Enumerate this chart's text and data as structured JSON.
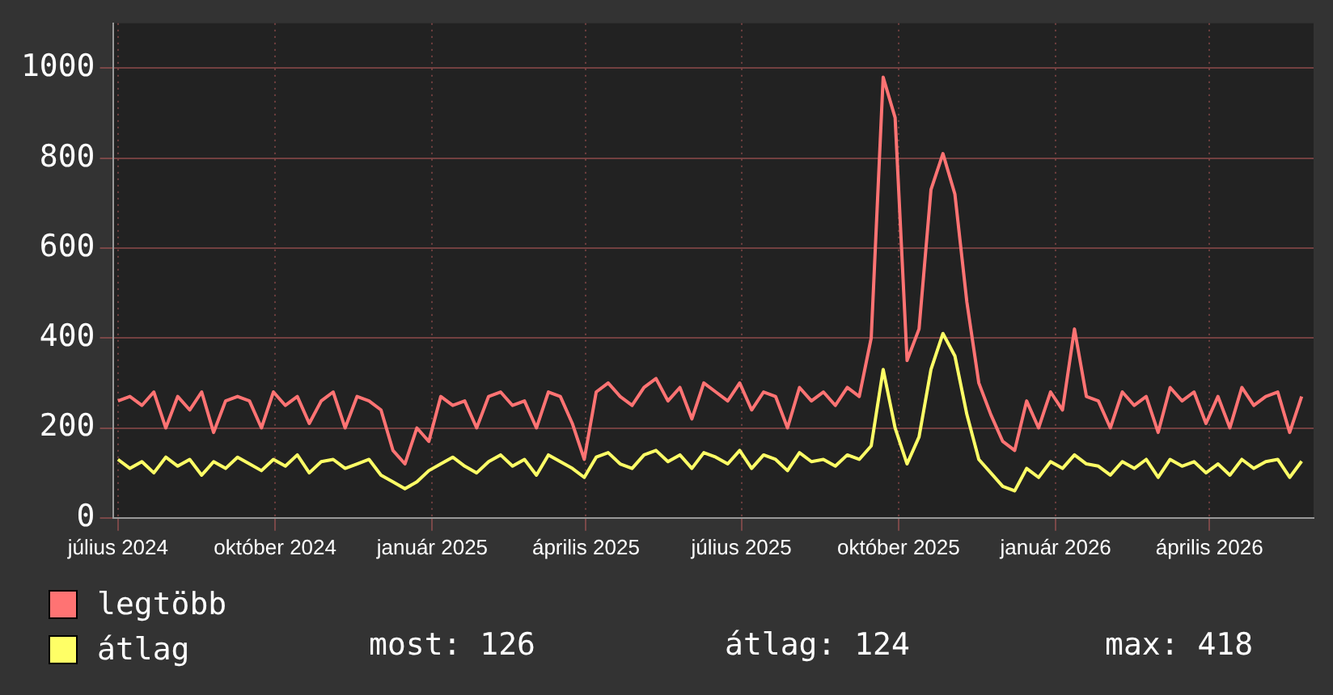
{
  "chart_data": {
    "type": "line",
    "x": [
      "2024-07-01",
      "2024-07-08",
      "2024-07-15",
      "2024-07-22",
      "2024-07-29",
      "2024-08-05",
      "2024-08-12",
      "2024-08-19",
      "2024-08-26",
      "2024-09-02",
      "2024-09-09",
      "2024-09-16",
      "2024-09-23",
      "2024-09-30",
      "2024-10-07",
      "2024-10-14",
      "2024-10-21",
      "2024-10-28",
      "2024-11-04",
      "2024-11-11",
      "2024-11-18",
      "2024-11-25",
      "2024-12-02",
      "2024-12-09",
      "2024-12-16",
      "2024-12-23",
      "2024-12-30",
      "2025-01-06",
      "2025-01-13",
      "2025-01-20",
      "2025-01-27",
      "2025-02-03",
      "2025-02-10",
      "2025-02-17",
      "2025-02-24",
      "2025-03-03",
      "2025-03-10",
      "2025-03-17",
      "2025-03-24",
      "2025-03-31",
      "2025-04-07",
      "2025-04-14",
      "2025-04-21",
      "2025-04-28",
      "2025-05-05",
      "2025-05-12",
      "2025-05-19",
      "2025-05-26",
      "2025-06-02",
      "2025-06-09",
      "2025-06-16",
      "2025-06-23",
      "2025-06-30",
      "2025-07-07",
      "2025-07-14",
      "2025-07-21",
      "2025-07-28",
      "2025-08-04",
      "2025-08-11",
      "2025-08-18",
      "2025-08-25",
      "2025-09-01",
      "2025-09-08",
      "2025-09-15",
      "2025-09-22",
      "2025-09-29",
      "2025-10-06",
      "2025-10-13",
      "2025-10-20",
      "2025-10-27",
      "2025-11-03",
      "2025-11-10",
      "2025-11-17",
      "2025-11-24",
      "2025-12-01",
      "2025-12-08",
      "2025-12-15",
      "2025-12-22",
      "2025-12-29",
      "2026-01-05",
      "2026-01-12",
      "2026-01-19",
      "2026-01-26",
      "2026-02-02",
      "2026-02-09",
      "2026-02-16",
      "2026-02-23",
      "2026-03-02",
      "2026-03-09",
      "2026-03-16",
      "2026-03-23",
      "2026-03-30",
      "2026-04-06",
      "2026-04-13",
      "2026-04-20",
      "2026-04-27",
      "2026-05-04",
      "2026-05-11",
      "2026-05-18",
      "2026-05-25"
    ],
    "series": [
      {
        "name": "legtöbb",
        "color": "#ff7373",
        "values": [
          260,
          270,
          250,
          280,
          200,
          270,
          240,
          280,
          190,
          260,
          270,
          260,
          200,
          280,
          250,
          270,
          210,
          260,
          280,
          200,
          270,
          260,
          240,
          150,
          120,
          200,
          170,
          270,
          250,
          260,
          200,
          270,
          280,
          250,
          260,
          200,
          280,
          270,
          210,
          130,
          280,
          300,
          270,
          250,
          290,
          310,
          260,
          290,
          220,
          300,
          280,
          260,
          300,
          240,
          280,
          270,
          200,
          290,
          260,
          280,
          250,
          290,
          270,
          400,
          980,
          890,
          350,
          420,
          730,
          810,
          720,
          480,
          300,
          230,
          170,
          150,
          260,
          200,
          280,
          240,
          420,
          270,
          260,
          200,
          280,
          250,
          270,
          190,
          290,
          260,
          280,
          210,
          270,
          200,
          290,
          250,
          270,
          280,
          190,
          270
        ]
      },
      {
        "name": "átlag",
        "color": "#ffff66",
        "values": [
          130,
          110,
          125,
          100,
          135,
          115,
          130,
          95,
          125,
          110,
          135,
          120,
          105,
          130,
          115,
          140,
          100,
          125,
          130,
          110,
          120,
          130,
          95,
          80,
          65,
          80,
          105,
          120,
          135,
          115,
          100,
          125,
          140,
          115,
          130,
          95,
          140,
          125,
          110,
          90,
          135,
          145,
          120,
          110,
          140,
          150,
          125,
          140,
          110,
          145,
          135,
          120,
          150,
          110,
          140,
          130,
          105,
          145,
          125,
          130,
          115,
          140,
          130,
          160,
          330,
          200,
          120,
          180,
          330,
          410,
          360,
          230,
          130,
          100,
          70,
          60,
          110,
          90,
          125,
          110,
          140,
          120,
          115,
          95,
          125,
          110,
          130,
          90,
          130,
          115,
          125,
          100,
          120,
          95,
          130,
          110,
          125,
          130,
          90,
          126
        ]
      }
    ],
    "xlim": [
      "2024-06-28",
      "2026-06-01"
    ],
    "xticks": [
      {
        "value": "2024-07-01",
        "label": "július 2024"
      },
      {
        "value": "2024-10-01",
        "label": "október 2024"
      },
      {
        "value": "2025-01-01",
        "label": "január 2025"
      },
      {
        "value": "2025-04-01",
        "label": "április 2025"
      },
      {
        "value": "2025-07-01",
        "label": "július 2025"
      },
      {
        "value": "2025-10-01",
        "label": "október 2025"
      },
      {
        "value": "2026-01-01",
        "label": "január 2026"
      },
      {
        "value": "2026-04-01",
        "label": "április 2026"
      }
    ],
    "ylim": [
      0,
      1100
    ],
    "yticks": [
      0,
      200,
      400,
      600,
      800,
      1000
    ],
    "grid": true,
    "legend": "bottom left",
    "marker": "none",
    "line_style": "solid",
    "annotations": [
      "most: 126",
      "átlag: 124",
      "max: 418"
    ]
  }
}
